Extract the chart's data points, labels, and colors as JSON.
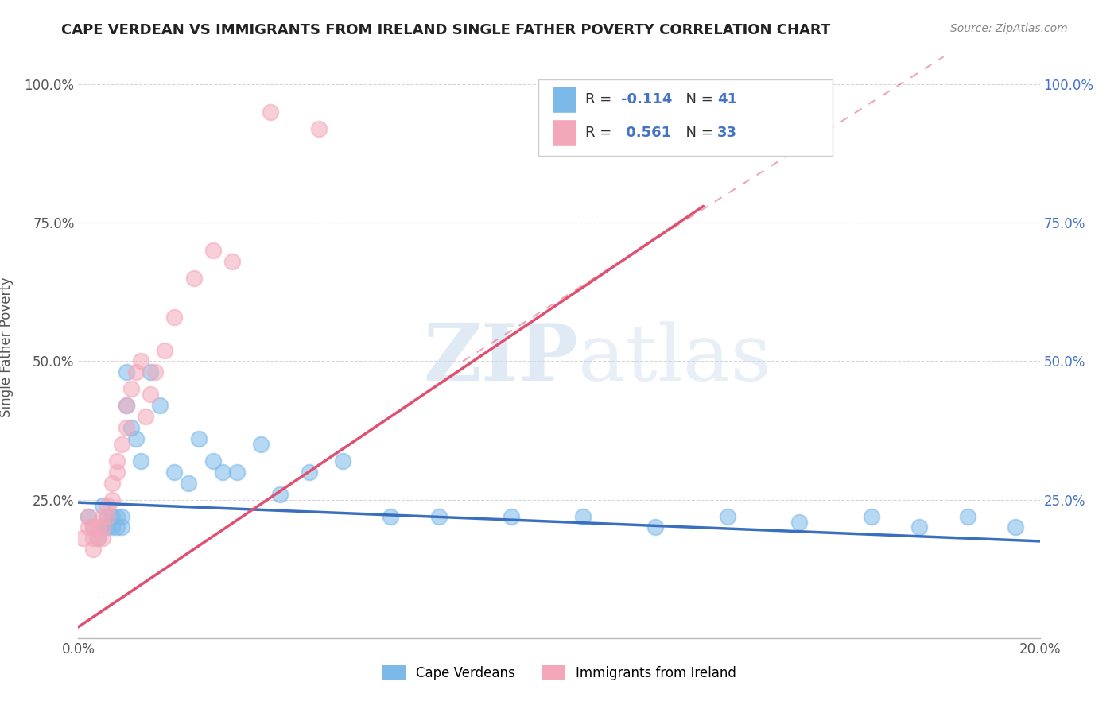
{
  "title": "CAPE VERDEAN VS IMMIGRANTS FROM IRELAND SINGLE FATHER POVERTY CORRELATION CHART",
  "source": "Source: ZipAtlas.com",
  "ylabel": "Single Father Poverty",
  "xlim": [
    0.0,
    0.2
  ],
  "ylim": [
    0.0,
    1.05
  ],
  "y_ticks": [
    0.0,
    0.25,
    0.5,
    0.75,
    1.0
  ],
  "y_tick_labels": [
    "",
    "25.0%",
    "50.0%",
    "75.0%",
    "100.0%"
  ],
  "x_ticks": [
    0.0,
    0.05,
    0.1,
    0.15,
    0.2
  ],
  "x_tick_labels": [
    "0.0%",
    "",
    "",
    "",
    "20.0%"
  ],
  "blue_R": -0.114,
  "blue_N": 41,
  "pink_R": 0.561,
  "pink_N": 33,
  "blue_color": "#7cb9e8",
  "pink_color": "#f4a7b9",
  "blue_line_color": "#3a6fbf",
  "pink_line_color": "#e05070",
  "watermark_zip": "ZIP",
  "watermark_atlas": "atlas",
  "legend_labels": [
    "Cape Verdeans",
    "Immigrants from Ireland"
  ],
  "blue_x": [
    0.002,
    0.003,
    0.004,
    0.005,
    0.005,
    0.006,
    0.006,
    0.007,
    0.007,
    0.008,
    0.008,
    0.009,
    0.009,
    0.01,
    0.01,
    0.011,
    0.012,
    0.013,
    0.015,
    0.017,
    0.02,
    0.023,
    0.025,
    0.028,
    0.03,
    0.033,
    0.038,
    0.042,
    0.048,
    0.055,
    0.065,
    0.075,
    0.09,
    0.105,
    0.12,
    0.135,
    0.15,
    0.165,
    0.175,
    0.185,
    0.195
  ],
  "blue_y": [
    0.22,
    0.2,
    0.18,
    0.24,
    0.2,
    0.22,
    0.2,
    0.22,
    0.2,
    0.22,
    0.2,
    0.22,
    0.2,
    0.48,
    0.42,
    0.38,
    0.36,
    0.32,
    0.48,
    0.42,
    0.3,
    0.28,
    0.36,
    0.32,
    0.3,
    0.3,
    0.35,
    0.26,
    0.3,
    0.32,
    0.22,
    0.22,
    0.22,
    0.22,
    0.2,
    0.22,
    0.21,
    0.22,
    0.2,
    0.22,
    0.2
  ],
  "pink_x": [
    0.001,
    0.002,
    0.002,
    0.003,
    0.003,
    0.003,
    0.004,
    0.004,
    0.005,
    0.005,
    0.005,
    0.006,
    0.006,
    0.007,
    0.007,
    0.008,
    0.008,
    0.009,
    0.01,
    0.01,
    0.011,
    0.012,
    0.013,
    0.014,
    0.015,
    0.016,
    0.018,
    0.02,
    0.024,
    0.028,
    0.032,
    0.04,
    0.05
  ],
  "pink_y": [
    0.18,
    0.2,
    0.22,
    0.2,
    0.18,
    0.16,
    0.18,
    0.2,
    0.22,
    0.2,
    0.18,
    0.22,
    0.24,
    0.25,
    0.28,
    0.3,
    0.32,
    0.35,
    0.38,
    0.42,
    0.45,
    0.48,
    0.5,
    0.4,
    0.44,
    0.48,
    0.52,
    0.58,
    0.65,
    0.7,
    0.68,
    0.95,
    0.92
  ],
  "pink_line_x0": 0.0,
  "pink_line_y0": 0.02,
  "pink_line_x1": 0.13,
  "pink_line_y1": 0.78,
  "blue_line_x0": 0.0,
  "blue_line_y0": 0.245,
  "blue_line_x1": 0.2,
  "blue_line_y1": 0.175
}
